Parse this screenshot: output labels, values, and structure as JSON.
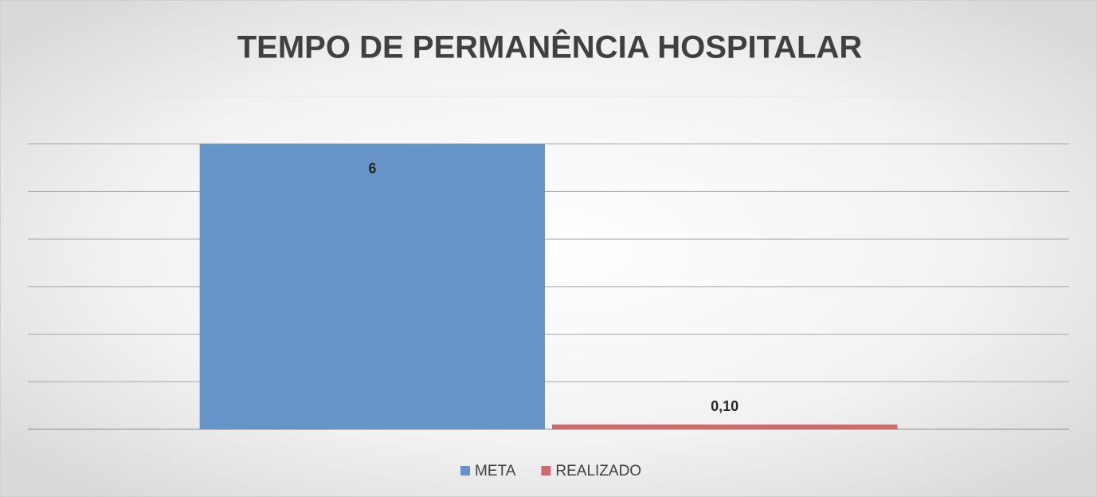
{
  "chart_data": {
    "type": "bar",
    "title": "TEMPO DE PERMANÊNCIA HOSPITALAR",
    "categories": [
      null
    ],
    "series": [
      {
        "name": "META",
        "color": "#6794c8",
        "values": [
          6
        ]
      },
      {
        "name": "REALIZADO",
        "color": "#d06a6a",
        "values": [
          0.1
        ],
        "value_labels": [
          "0,10"
        ]
      }
    ],
    "ylim": [
      0,
      7
    ],
    "yticks": [
      0,
      1,
      2,
      3,
      4,
      5,
      6,
      7
    ],
    "grid": true,
    "legend": "bottom"
  }
}
